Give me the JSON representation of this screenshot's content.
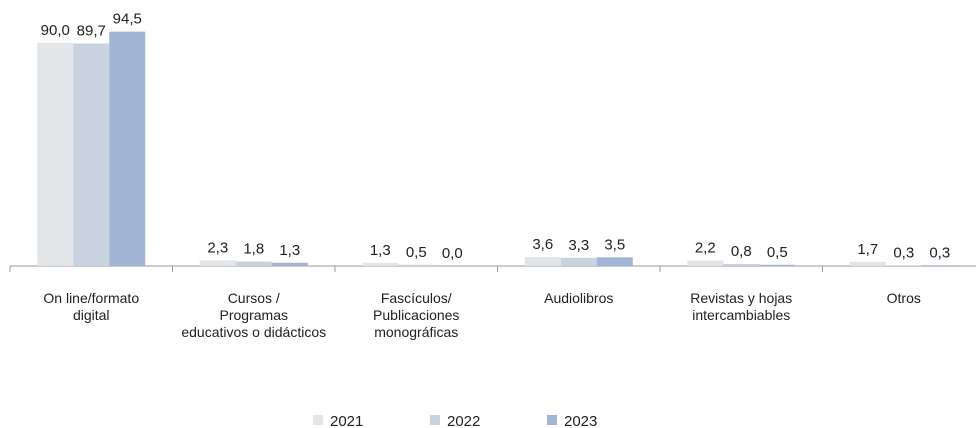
{
  "chart_data": {
    "type": "bar",
    "categories": [
      "On line/formato\ndigital",
      "Cursos /\nProgramas\neducativos o didácticos",
      "Fascículos/\nPublicaciones\nmonográficas",
      "Audiolibros",
      "Revistas y hojas\nintercambiables",
      "Otros"
    ],
    "series": [
      {
        "name": "2021",
        "color": "#e3e6e9",
        "values": [
          90.0,
          2.3,
          1.3,
          3.6,
          2.2,
          1.7
        ],
        "value_labels": [
          "90,0",
          "2,3",
          "1,3",
          "3,6",
          "2,2",
          "1,7"
        ]
      },
      {
        "name": "2022",
        "color": "#c9d3df",
        "values": [
          89.7,
          1.8,
          0.5,
          3.3,
          0.8,
          0.3
        ],
        "value_labels": [
          "89,7",
          "1,8",
          "0,5",
          "3,3",
          "0,8",
          "0,3"
        ]
      },
      {
        "name": "2023",
        "color": "#a3b5d4",
        "values": [
          94.5,
          1.3,
          0.0,
          3.5,
          0.5,
          0.3
        ],
        "value_labels": [
          "94,5",
          "1,3",
          "0,0",
          "3,5",
          "0,5",
          "0,3"
        ]
      }
    ],
    "ylim": [
      0,
      100
    ],
    "legend": "bottom"
  }
}
